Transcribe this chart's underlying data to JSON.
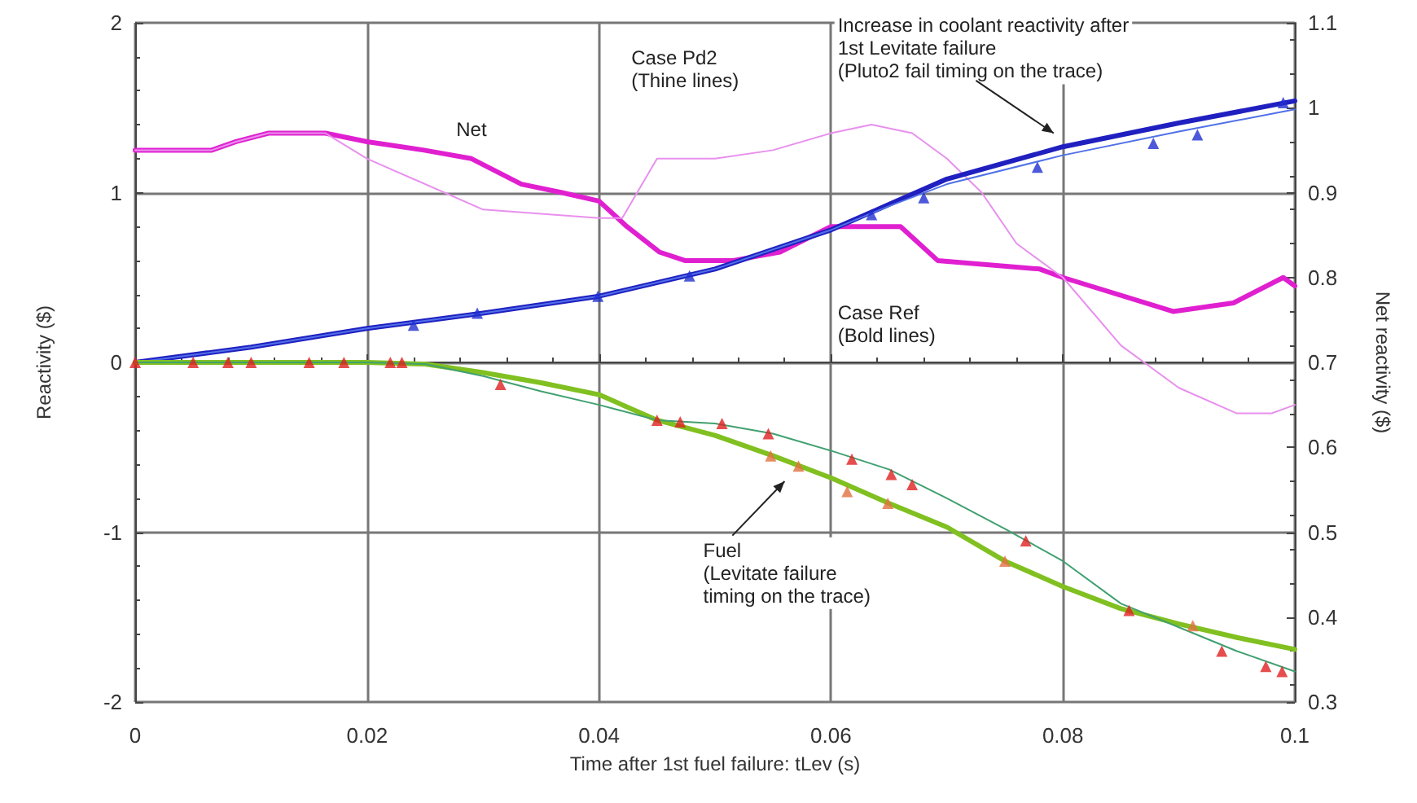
{
  "chart_data": {
    "type": "line",
    "xlabel": "Time after 1st fuel failure: tLev (s)",
    "ylabel": "Reactivity ($)",
    "y2label": "Net reactivity ($)",
    "xlim": [
      0,
      0.1
    ],
    "xticks": [
      0,
      0.02,
      0.04,
      0.06,
      0.08,
      0.1
    ],
    "ylim": [
      -2,
      2
    ],
    "yticks": [
      -2,
      -1,
      0,
      1,
      2
    ],
    "y2lim": [
      0.3,
      1.1
    ],
    "y2ticks": [
      0.3,
      0.4,
      0.5,
      0.6,
      0.7,
      0.8,
      0.9,
      1,
      1.1
    ],
    "grid": true,
    "marker": "none",
    "line_style": "solid",
    "annotations": [
      "Net",
      "Case Pd2\n(Thine lines)",
      "Increase in coolant reactivity after\n1st Levitate failure\n(Pluto2 fail timing on the trace)",
      "Case Ref\n(Bold lines)",
      "Fuel\n(Levitate failure\ntiming on the trace)"
    ],
    "series": [
      {
        "axis": "y2",
        "color": "#e020d0",
        "x": [
          0,
          0.0066,
          0.0087,
          0.0115,
          0.0164,
          0.02,
          0.0249,
          0.029,
          0.0333,
          0.0368,
          0.04,
          0.0424,
          0.0452,
          0.0474,
          0.0516,
          0.0556,
          0.06,
          0.066,
          0.0692,
          0.078,
          0.08,
          0.0895,
          0.0947,
          0.099,
          0.1
        ],
        "values": [
          0.95,
          0.95,
          0.96,
          0.97,
          0.97,
          0.96,
          0.95,
          0.94,
          0.91,
          0.9,
          0.89,
          0.86,
          0.83,
          0.82,
          0.82,
          0.83,
          0.86,
          0.86,
          0.82,
          0.81,
          0.8,
          0.76,
          0.77,
          0.8,
          0.79
        ]
      },
      {
        "axis": "y2",
        "color": "#e890ee",
        "x": [
          0,
          0.0066,
          0.0087,
          0.0115,
          0.0164,
          0.02,
          0.03,
          0.04,
          0.042,
          0.045,
          0.05,
          0.055,
          0.06,
          0.0635,
          0.067,
          0.07,
          0.073,
          0.076,
          0.08,
          0.085,
          0.09,
          0.095,
          0.098,
          0.1
        ],
        "values": [
          0.95,
          0.95,
          0.96,
          0.97,
          0.97,
          0.94,
          0.88,
          0.87,
          0.87,
          0.94,
          0.94,
          0.95,
          0.97,
          0.98,
          0.97,
          0.94,
          0.9,
          0.84,
          0.8,
          0.72,
          0.67,
          0.64,
          0.64,
          0.65
        ]
      },
      {
        "color": "#2020c0",
        "x": [
          0,
          0.01,
          0.02,
          0.03,
          0.04,
          0.05,
          0.06,
          0.065,
          0.07,
          0.08,
          0.09,
          0.1
        ],
        "values": [
          0,
          0.09,
          0.2,
          0.29,
          0.39,
          0.55,
          0.78,
          0.93,
          1.08,
          1.27,
          1.41,
          1.54
        ]
      },
      {
        "color": "#5070e8",
        "x": [
          0,
          0.01,
          0.02,
          0.03,
          0.04,
          0.05,
          0.06,
          0.065,
          0.07,
          0.08,
          0.09,
          0.1
        ],
        "values": [
          0,
          0.09,
          0.2,
          0.29,
          0.39,
          0.55,
          0.78,
          0.92,
          1.05,
          1.22,
          1.36,
          1.49
        ]
      },
      {
        "color": "#80c020",
        "x": [
          0,
          0.02,
          0.025,
          0.03,
          0.035,
          0.04,
          0.045,
          0.05,
          0.055,
          0.06,
          0.065,
          0.07,
          0.075,
          0.08,
          0.085,
          0.09,
          0.095,
          0.1
        ],
        "values": [
          0,
          0,
          -0.01,
          -0.06,
          -0.12,
          -0.19,
          -0.34,
          -0.43,
          -0.55,
          -0.68,
          -0.83,
          -0.97,
          -1.17,
          -1.32,
          -1.45,
          -1.54,
          -1.62,
          -1.69
        ]
      },
      {
        "color": "#40a070",
        "x": [
          0,
          0.02,
          0.025,
          0.03,
          0.035,
          0.04,
          0.045,
          0.05,
          0.055,
          0.06,
          0.065,
          0.07,
          0.075,
          0.08,
          0.085,
          0.09,
          0.095,
          0.1
        ],
        "values": [
          0,
          0,
          -0.01,
          -0.08,
          -0.17,
          -0.25,
          -0.34,
          -0.36,
          -0.42,
          -0.52,
          -0.63,
          -0.8,
          -0.98,
          -1.17,
          -1.42,
          -1.56,
          -1.7,
          -1.82
        ]
      },
      {
        "type": "scatter",
        "marker": "triangle",
        "color": "#2030d0",
        "x": [
          0.024,
          0.0295,
          0.0399,
          0.0478,
          0.0635,
          0.068,
          0.0778,
          0.0878,
          0.0916,
          0.099
        ],
        "values": [
          0.22,
          0.29,
          0.39,
          0.51,
          0.87,
          0.97,
          1.15,
          1.29,
          1.34,
          1.53
        ]
      },
      {
        "type": "scatter",
        "marker": "triangle",
        "color": "#e02020",
        "x": [
          0,
          0.005,
          0.008,
          0.01,
          0.015,
          0.018,
          0.022,
          0.023,
          0.0315,
          0.045,
          0.047,
          0.0506,
          0.0546,
          0.0618,
          0.0652,
          0.067,
          0.0768,
          0.0857,
          0.0937,
          0.0975,
          0.0989
        ],
        "values": [
          0,
          0,
          0,
          0,
          0,
          0,
          0,
          0,
          -0.13,
          -0.34,
          -0.35,
          -0.36,
          -0.42,
          -0.57,
          -0.66,
          -0.72,
          -1.05,
          -1.46,
          -1.7,
          -1.79,
          -1.82
        ]
      },
      {
        "type": "scatter",
        "marker": "triangle",
        "color": "#e07040",
        "x": [
          0.0548,
          0.0572,
          0.0614,
          0.0649,
          0.075,
          0.0912
        ],
        "values": [
          -0.55,
          -0.61,
          -0.76,
          -0.83,
          -1.17,
          -1.55
        ]
      }
    ]
  }
}
